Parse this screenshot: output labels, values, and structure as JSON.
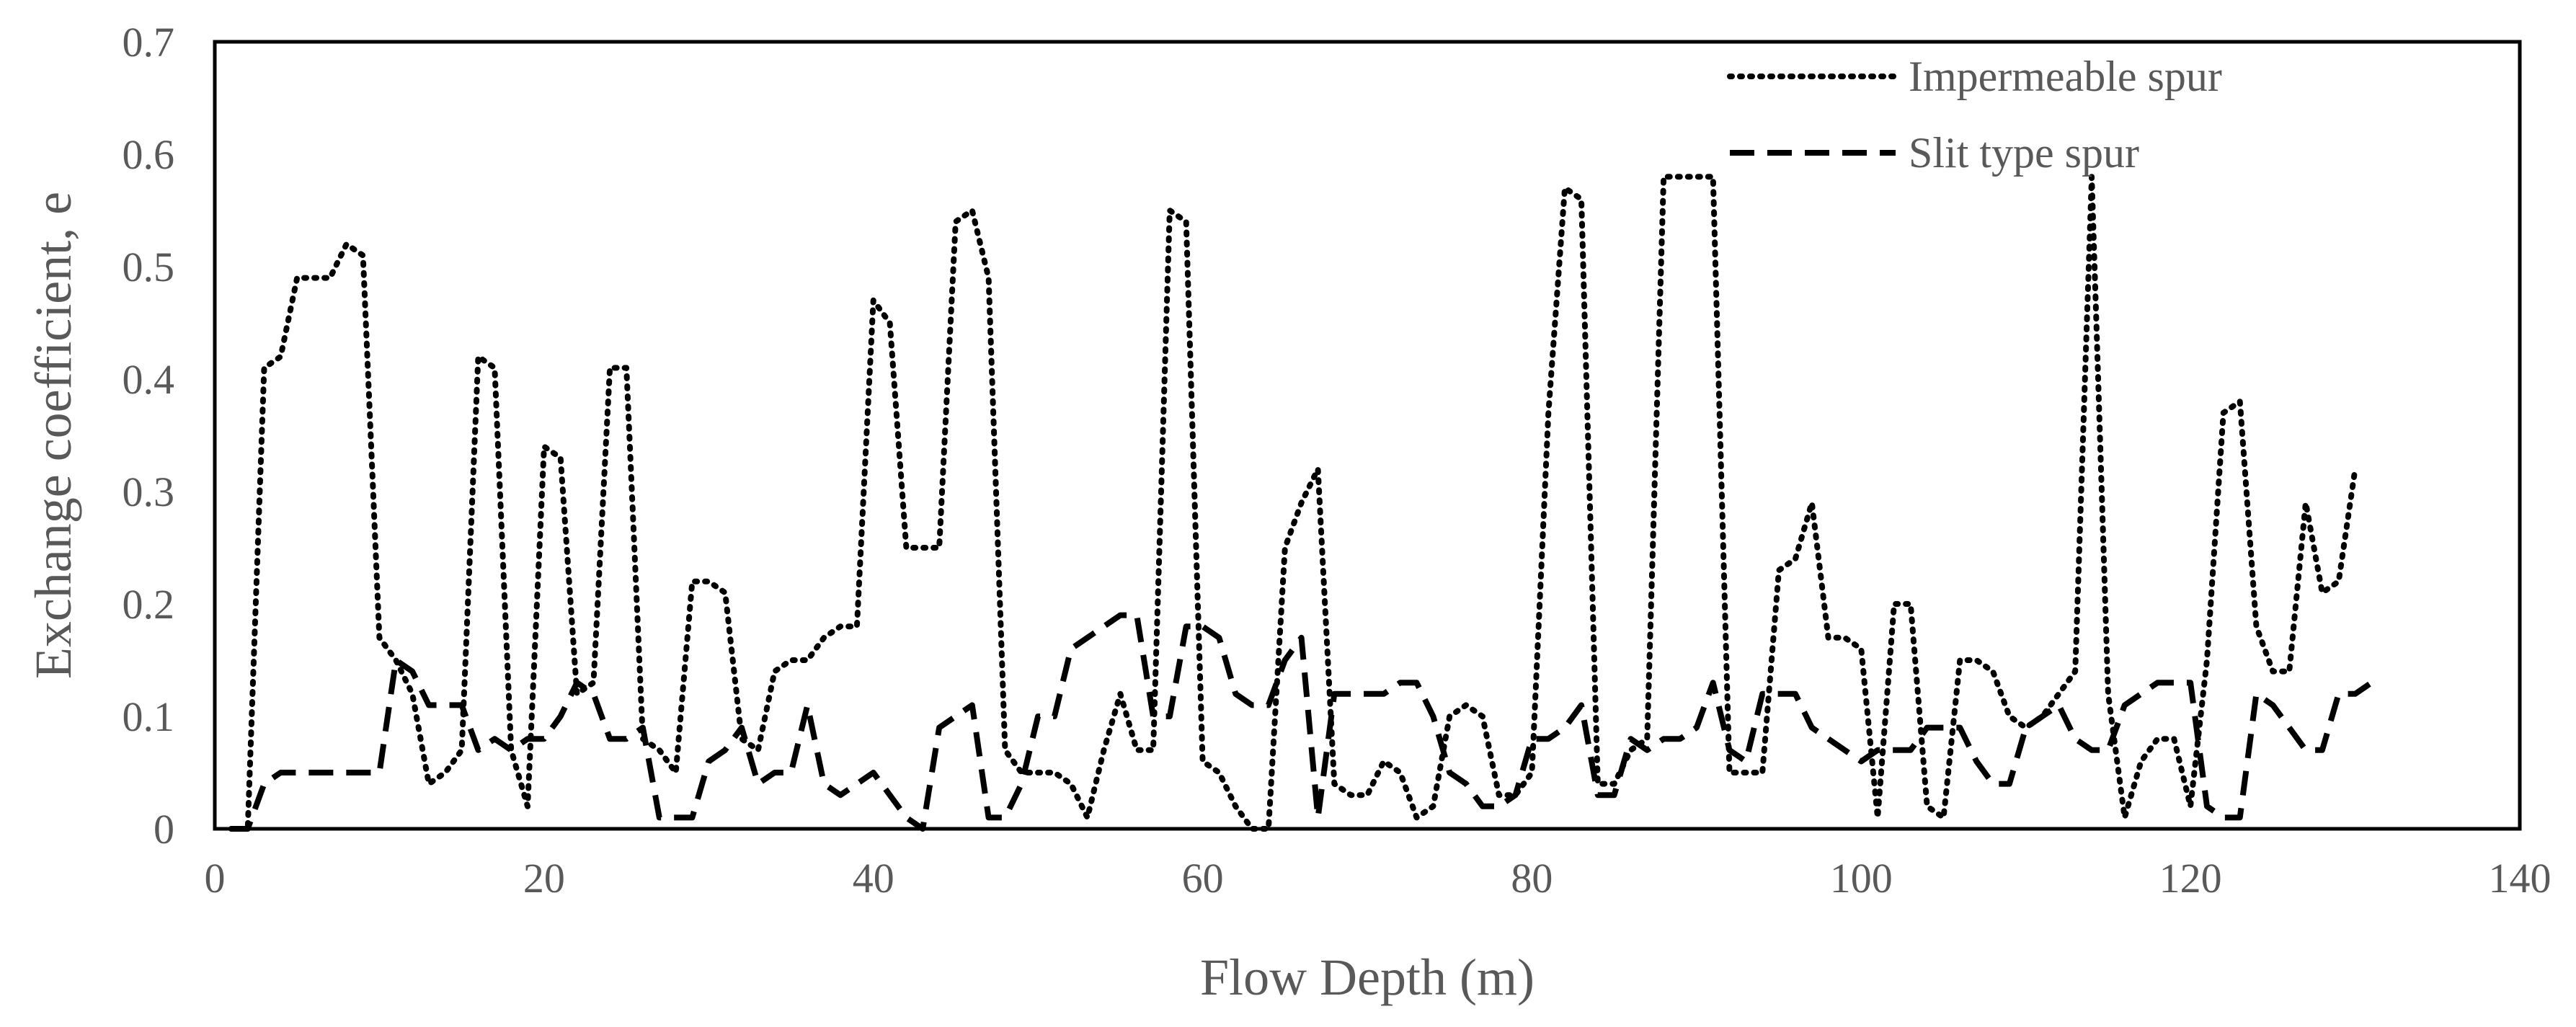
{
  "chart_data": {
    "type": "line",
    "xlabel": "Flow Depth (m)",
    "ylabel": "Exchange coefficient, e",
    "xlim": [
      0,
      140
    ],
    "ylim": [
      0,
      0.7
    ],
    "x_ticks": [
      0,
      20,
      40,
      60,
      80,
      100,
      120,
      140
    ],
    "y_ticks": [
      0,
      0.1,
      0.2,
      0.3,
      0.4,
      0.5,
      0.6,
      0.7
    ],
    "x_tick_labels": [
      "0",
      "20",
      "40",
      "60",
      "80",
      "100",
      "120",
      "140"
    ],
    "y_tick_labels": [
      "0",
      "0.1",
      "0.2",
      "0.3",
      "0.4",
      "0.5",
      "0.6",
      "0.7"
    ],
    "grid": false,
    "legend_position": "top-right",
    "series": [
      {
        "name": "Impermeable spur",
        "style": "dotted",
        "color": "#000000",
        "x": [
          1,
          2,
          3,
          4,
          5,
          6,
          7,
          8,
          9,
          10,
          11,
          12,
          13,
          14,
          15,
          16,
          17,
          18,
          19,
          20,
          21,
          22,
          23,
          24,
          25,
          26,
          27,
          28,
          29,
          30,
          31,
          32,
          33,
          34,
          35,
          36,
          37,
          38,
          39,
          40,
          41,
          42,
          43,
          44,
          45,
          46,
          47,
          48,
          49,
          50,
          51,
          52,
          53,
          54,
          55,
          56,
          57,
          58,
          59,
          60,
          61,
          62,
          63,
          64,
          65,
          66,
          67,
          68,
          69,
          70,
          71,
          72,
          73,
          74,
          75,
          76,
          77,
          78,
          79,
          80,
          81,
          82,
          83,
          84,
          85,
          86,
          87,
          88,
          89,
          90,
          91,
          92,
          93,
          94,
          95,
          96,
          97,
          98,
          99,
          100,
          101,
          102,
          103,
          104,
          105,
          106,
          107,
          108,
          109,
          110,
          111,
          112,
          113,
          114,
          115,
          116,
          117,
          118,
          119,
          120,
          121,
          122,
          123,
          124,
          125,
          126,
          127,
          128,
          129,
          130
        ],
        "y": [
          0,
          0,
          0.41,
          0.42,
          0.49,
          0.49,
          0.49,
          0.52,
          0.51,
          0.17,
          0.15,
          0.12,
          0.04,
          0.05,
          0.07,
          0.42,
          0.41,
          0.07,
          0.02,
          0.34,
          0.33,
          0.12,
          0.13,
          0.41,
          0.41,
          0.08,
          0.07,
          0.05,
          0.22,
          0.22,
          0.21,
          0.08,
          0.07,
          0.14,
          0.15,
          0.15,
          0.17,
          0.18,
          0.18,
          0.47,
          0.45,
          0.25,
          0.25,
          0.25,
          0.54,
          0.55,
          0.49,
          0.07,
          0.05,
          0.05,
          0.05,
          0.04,
          0.01,
          0.07,
          0.12,
          0.07,
          0.07,
          0.55,
          0.54,
          0.06,
          0.05,
          0.02,
          0,
          0,
          0.25,
          0.29,
          0.32,
          0.04,
          0.03,
          0.03,
          0.06,
          0.05,
          0.01,
          0.02,
          0.1,
          0.11,
          0.1,
          0.03,
          0.03,
          0.05,
          0.37,
          0.57,
          0.56,
          0.04,
          0.04,
          0.07,
          0.08,
          0.58,
          0.58,
          0.58,
          0.58,
          0.05,
          0.05,
          0.05,
          0.23,
          0.24,
          0.29,
          0.17,
          0.17,
          0.16,
          0.01,
          0.2,
          0.2,
          0.02,
          0.01,
          0.15,
          0.15,
          0.14,
          0.1,
          0.09,
          0.1,
          0.12,
          0.14,
          0.58,
          0.12,
          0.01,
          0.06,
          0.08,
          0.08,
          0.02,
          0.15,
          0.37,
          0.38,
          0.18,
          0.14,
          0.14,
          0.29,
          0.21,
          0.22,
          0.32
        ]
      },
      {
        "name": "Slit type spur",
        "style": "dashed",
        "color": "#000000",
        "x": [
          1,
          2,
          3,
          4,
          5,
          6,
          7,
          8,
          9,
          10,
          11,
          12,
          13,
          14,
          15,
          16,
          17,
          18,
          19,
          20,
          21,
          22,
          23,
          24,
          25,
          26,
          27,
          28,
          29,
          30,
          31,
          32,
          33,
          34,
          35,
          36,
          37,
          38,
          39,
          40,
          41,
          42,
          43,
          44,
          45,
          46,
          47,
          48,
          49,
          50,
          51,
          52,
          53,
          54,
          55,
          56,
          57,
          58,
          59,
          60,
          61,
          62,
          63,
          64,
          65,
          66,
          67,
          68,
          69,
          70,
          71,
          72,
          73,
          74,
          75,
          76,
          77,
          78,
          79,
          80,
          81,
          82,
          83,
          84,
          85,
          86,
          87,
          88,
          89,
          90,
          91,
          92,
          93,
          94,
          95,
          96,
          97,
          98,
          99,
          100,
          101,
          102,
          103,
          104,
          105,
          106,
          107,
          108,
          109,
          110,
          111,
          112,
          113,
          114,
          115,
          116,
          117,
          118,
          119,
          120,
          121,
          122,
          123,
          124,
          125,
          126,
          127,
          128,
          129,
          130,
          131
        ],
        "y": [
          0,
          0,
          0.04,
          0.05,
          0.05,
          0.05,
          0.05,
          0.05,
          0.05,
          0.05,
          0.15,
          0.14,
          0.11,
          0.11,
          0.11,
          0.07,
          0.08,
          0.07,
          0.08,
          0.08,
          0.1,
          0.13,
          0.12,
          0.08,
          0.08,
          0.09,
          0.01,
          0.01,
          0.01,
          0.06,
          0.07,
          0.09,
          0.04,
          0.05,
          0.05,
          0.11,
          0.04,
          0.03,
          0.04,
          0.05,
          0.03,
          0.01,
          0,
          0.09,
          0.1,
          0.11,
          0.01,
          0.01,
          0.04,
          0.1,
          0.1,
          0.16,
          0.17,
          0.18,
          0.19,
          0.19,
          0.1,
          0.1,
          0.18,
          0.18,
          0.17,
          0.12,
          0.11,
          0.11,
          0.15,
          0.17,
          0.01,
          0.12,
          0.12,
          0.12,
          0.12,
          0.13,
          0.13,
          0.1,
          0.05,
          0.04,
          0.02,
          0.02,
          0.03,
          0.08,
          0.08,
          0.09,
          0.11,
          0.03,
          0.03,
          0.08,
          0.07,
          0.08,
          0.08,
          0.09,
          0.13,
          0.07,
          0.06,
          0.12,
          0.12,
          0.12,
          0.09,
          0.08,
          0.07,
          0.06,
          0.07,
          0.07,
          0.07,
          0.09,
          0.09,
          0.09,
          0.06,
          0.04,
          0.04,
          0.09,
          0.1,
          0.11,
          0.08,
          0.07,
          0.07,
          0.11,
          0.12,
          0.13,
          0.13,
          0.13,
          0.02,
          0.01,
          0.01,
          0.12,
          0.11,
          0.09,
          0.07,
          0.07,
          0.12,
          0.12,
          0.13
        ]
      }
    ]
  }
}
